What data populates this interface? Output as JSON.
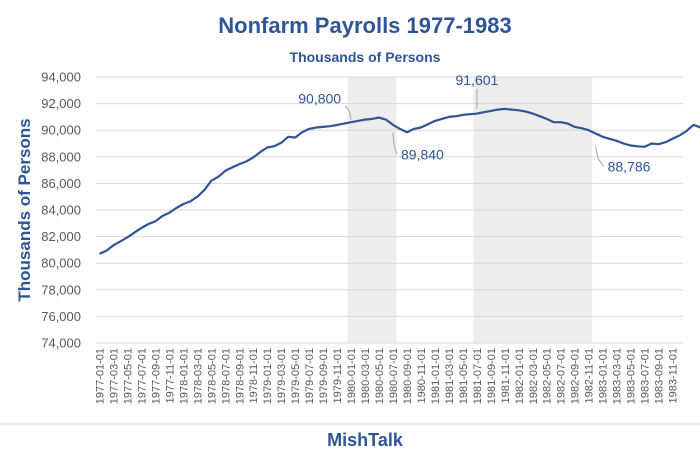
{
  "chart_data": {
    "type": "line",
    "title": "Nonfarm Payrolls 1977-1983",
    "subtitle": "Thousands of Persons",
    "ylabel": "Thousands of  Persons",
    "xlabel": "",
    "ylim": [
      74000,
      94000
    ],
    "yticks": [
      74000,
      76000,
      78000,
      80000,
      82000,
      84000,
      86000,
      88000,
      90000,
      92000,
      94000
    ],
    "ytick_labels": [
      "74,000",
      "76,000",
      "78,000",
      "80,000",
      "82,000",
      "84,000",
      "86,000",
      "88,000",
      "90,000",
      "92,000",
      "94,000"
    ],
    "grid": true,
    "x_start": "1977-01",
    "x_end": "1983-12",
    "x_tick_labels": [
      "1977-01-01",
      "1977-03-01",
      "1977-05-01",
      "1977-07-01",
      "1977-09-01",
      "1977-11-01",
      "1978-01-01",
      "1978-03-01",
      "1978-05-01",
      "1978-07-01",
      "1978-09-01",
      "1978-11-01",
      "1979-01-01",
      "1979-03-01",
      "1979-05-01",
      "1979-07-01",
      "1979-09-01",
      "1979-11-01",
      "1980-01-01",
      "1980-03-01",
      "1980-05-01",
      "1980-07-01",
      "1980-09-01",
      "1980-11-01",
      "1981-01-01",
      "1981-03-01",
      "1981-05-01",
      "1981-07-01",
      "1981-09-01",
      "1981-11-01",
      "1982-01-01",
      "1982-03-01",
      "1982-05-01",
      "1982-07-01",
      "1982-09-01",
      "1982-11-01",
      "1983-01-01",
      "1983-03-01",
      "1983-05-01",
      "1983-07-01",
      "1983-09-01",
      "1983-11-01"
    ],
    "recessions": [
      {
        "start": "1980-01",
        "end": "1980-07"
      },
      {
        "start": "1981-07",
        "end": "1982-11"
      }
    ],
    "series": [
      {
        "color": "#2f5597",
        "values": [
          80700,
          80950,
          81350,
          81650,
          81950,
          82300,
          82650,
          82950,
          83150,
          83550,
          83800,
          84150,
          84450,
          84650,
          85000,
          85500,
          86200,
          86500,
          86950,
          87200,
          87450,
          87650,
          87950,
          88350,
          88700,
          88800,
          89050,
          89500,
          89450,
          89850,
          90100,
          90200,
          90250,
          90300,
          90400,
          90500,
          90600,
          90700,
          90800,
          90850,
          90950,
          90800,
          90400,
          90100,
          89840,
          90100,
          90200,
          90450,
          90700,
          90850,
          91000,
          91050,
          91150,
          91200,
          91250,
          91350,
          91450,
          91550,
          91601,
          91550,
          91500,
          91400,
          91250,
          91050,
          90850,
          90600,
          90600,
          90500,
          90250,
          90150,
          90000,
          89750,
          89500,
          89350,
          89200,
          89000,
          88850,
          88786,
          88750,
          89000,
          88950,
          89100,
          89350,
          89600,
          89950,
          90400,
          90200,
          91200,
          91400,
          91700,
          92000,
          92300
        ]
      }
    ],
    "annotations": [
      {
        "text": "90,800",
        "date": "1980-01",
        "value": 90800
      },
      {
        "text": "89,840",
        "date": "1980-07",
        "value": 89840
      },
      {
        "text": "91,601",
        "date": "1981-07",
        "value": 91601
      },
      {
        "text": "88,786",
        "date": "1982-12",
        "value": 88786
      }
    ]
  },
  "footer": "MishTalk"
}
